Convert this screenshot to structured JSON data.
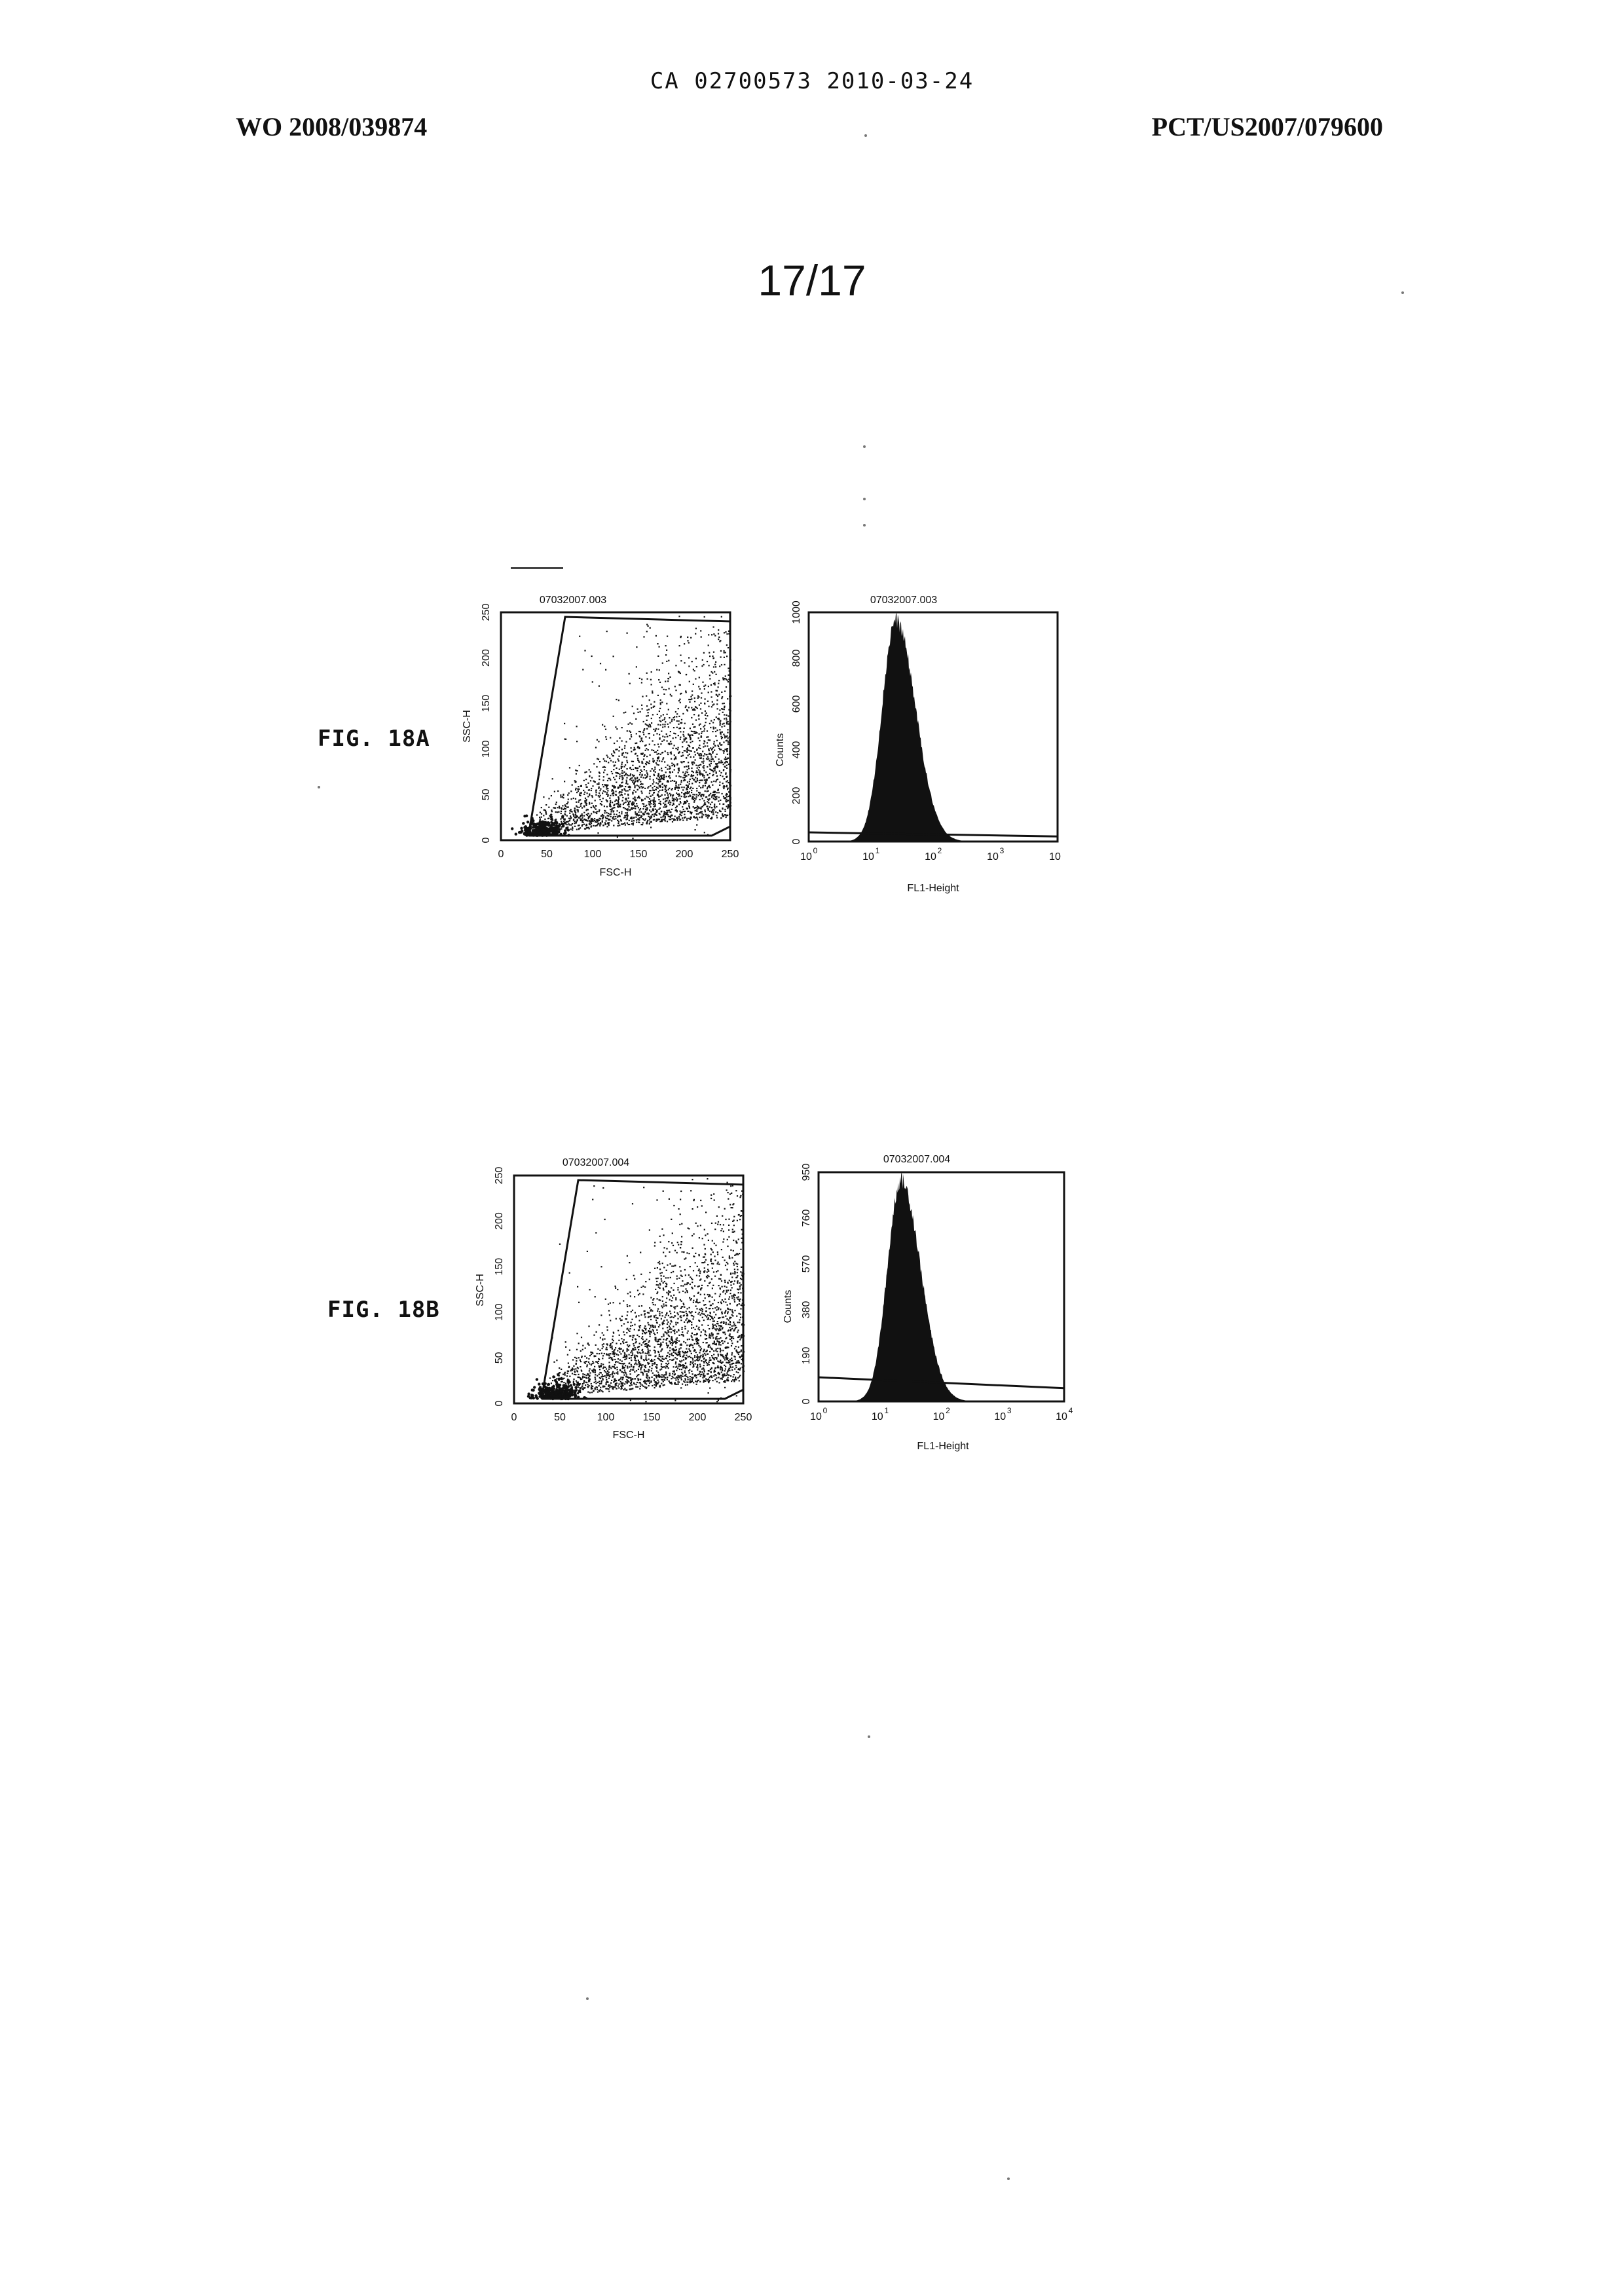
{
  "header": {
    "center": "CA 02700573 2010-03-24",
    "left": "WO 2008/039874",
    "right": "PCT/US2007/079600"
  },
  "page_number": "17/17",
  "figures": [
    {
      "label": "FIG. 18A",
      "scatter": {
        "title": "07032007.003",
        "xlabel": "FSC-H",
        "ylabel": "SSC-H",
        "xticks": [
          "0",
          "50",
          "100",
          "150",
          "200",
          "250"
        ],
        "yticks": [
          "0",
          "50",
          "100",
          "150",
          "200",
          "250"
        ]
      },
      "histogram": {
        "title": "07032007.003",
        "xlabel": "FL1-Height",
        "ylabel": "Counts",
        "xticks": [
          "10",
          "10",
          "10",
          "10",
          "10"
        ],
        "xtick_exponents": [
          "0",
          "1",
          "2",
          "3",
          ""
        ],
        "yticks": [
          "0",
          "200",
          "400",
          "600",
          "800",
          "1000"
        ]
      }
    },
    {
      "label": "FIG. 18B",
      "scatter": {
        "title": "07032007.004",
        "xlabel": "FSC-H",
        "ylabel": "SSC-H",
        "xticks": [
          "0",
          "50",
          "100",
          "150",
          "200",
          "250"
        ],
        "yticks": [
          "0",
          "50",
          "100",
          "150",
          "200",
          "250"
        ]
      },
      "histogram": {
        "title": "07032007.004",
        "xlabel": "FL1-Height",
        "ylabel": "Counts",
        "xticks": [
          "10",
          "10",
          "10",
          "10",
          "10"
        ],
        "xtick_exponents": [
          "0",
          "1",
          "2",
          "3",
          "4"
        ],
        "yticks": [
          "0",
          "190",
          "380",
          "570",
          "760",
          "950"
        ]
      }
    }
  ],
  "chart_data": [
    {
      "type": "scatter",
      "title": "07032007.003",
      "xlabel": "FSC-H",
      "ylabel": "SSC-H",
      "xlim": [
        0,
        250
      ],
      "ylim": [
        0,
        250
      ],
      "gate_polygon": {
        "x": [
          30,
          70,
          250,
          250,
          230,
          30
        ],
        "y": [
          5,
          245,
          240,
          15,
          5,
          5
        ]
      },
      "population": {
        "x_center": 130,
        "y_center": 30,
        "density_peak_region": "lower-right"
      }
    },
    {
      "type": "bar",
      "title": "07032007.003",
      "xlabel": "FL1-Height",
      "ylabel": "Counts",
      "x_scale": "log",
      "xlim": [
        1,
        10000
      ],
      "ylim": [
        0,
        1000
      ],
      "peak_x": 25,
      "peak_y": 1000,
      "marker_level": 40
    },
    {
      "type": "scatter",
      "title": "07032007.004",
      "xlabel": "FSC-H",
      "ylabel": "SSC-H",
      "xlim": [
        0,
        250
      ],
      "ylim": [
        0,
        250
      ],
      "gate_polygon": {
        "x": [
          30,
          70,
          250,
          250,
          230,
          30
        ],
        "y": [
          5,
          245,
          240,
          15,
          5,
          5
        ]
      },
      "population": {
        "x_center": 120,
        "y_center": 30,
        "density_peak_region": "lower-right"
      }
    },
    {
      "type": "bar",
      "title": "07032007.004",
      "xlabel": "FL1-Height",
      "ylabel": "Counts",
      "x_scale": "log",
      "xlim": [
        1,
        10000
      ],
      "ylim": [
        0,
        950
      ],
      "peak_x": 22,
      "peak_y": 950,
      "marker_level": 100
    }
  ]
}
